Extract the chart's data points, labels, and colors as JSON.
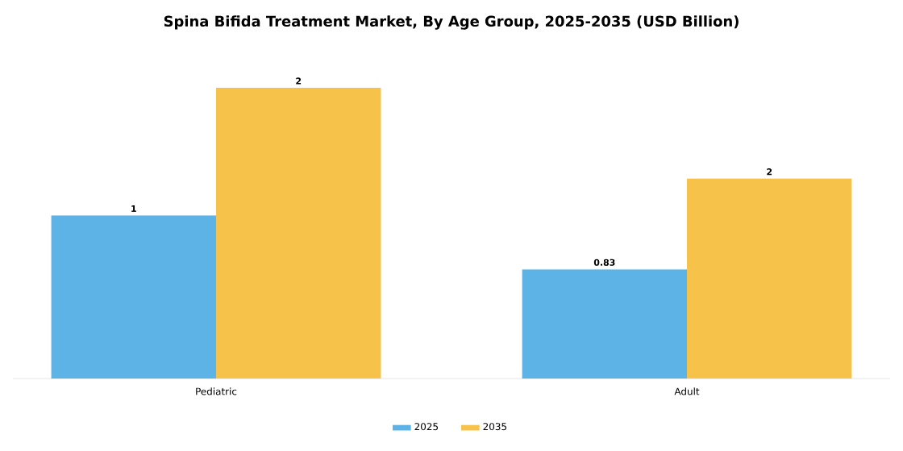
{
  "chart_data": {
    "type": "bar",
    "title": "Spina Bifida Treatment Market, By Age Group, 2025-2035 (USD Billion)",
    "categories": [
      "Pediatric",
      "Adult"
    ],
    "series": [
      {
        "name": "2025",
        "color": "#5db3e6",
        "values": [
          1.24,
          0.83
        ],
        "value_labels": [
          "1",
          "0.83"
        ]
      },
      {
        "name": "2035",
        "color": "#f7c24a",
        "values": [
          2.21,
          1.52
        ],
        "value_labels": [
          "2",
          "2"
        ]
      }
    ],
    "legend": "bottom"
  }
}
